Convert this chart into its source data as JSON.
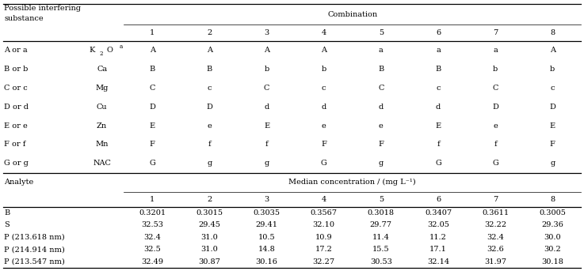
{
  "title_combination": "Combination",
  "title_median": "Median concentration / (mg L⁻¹)",
  "header1": "Possible interfering",
  "header2": "substance",
  "analyte_label": "Analyte",
  "combination_cols": [
    "1",
    "2",
    "3",
    "4",
    "5",
    "6",
    "7",
    "8"
  ],
  "interfering_rows": [
    {
      "label": "A or a",
      "substance": "K2Oa",
      "values": [
        "A",
        "A",
        "A",
        "A",
        "a",
        "a",
        "a",
        "A"
      ]
    },
    {
      "label": "B or b",
      "substance": "Ca",
      "values": [
        "B",
        "B",
        "b",
        "b",
        "B",
        "B",
        "b",
        "b"
      ]
    },
    {
      "label": "C or c",
      "substance": "Mg",
      "values": [
        "C",
        "c",
        "C",
        "c",
        "C",
        "c",
        "C",
        "c"
      ]
    },
    {
      "label": "D or d",
      "substance": "Cu",
      "values": [
        "D",
        "D",
        "d",
        "d",
        "d",
        "d",
        "D",
        "D"
      ]
    },
    {
      "label": "E or e",
      "substance": "Zn",
      "values": [
        "E",
        "e",
        "E",
        "e",
        "e",
        "E",
        "e",
        "E"
      ]
    },
    {
      "label": "F or f",
      "substance": "Mn",
      "values": [
        "F",
        "f",
        "f",
        "F",
        "F",
        "f",
        "f",
        "F"
      ]
    },
    {
      "label": "G or g",
      "substance": "NAC",
      "values": [
        "G",
        "g",
        "g",
        "G",
        "g",
        "G",
        "G",
        "g"
      ]
    }
  ],
  "analyte_rows": [
    {
      "label": "B",
      "values": [
        "0.3201",
        "0.3015",
        "0.3035",
        "0.3567",
        "0.3018",
        "0.3407",
        "0.3611",
        "0.3005"
      ]
    },
    {
      "label": "S",
      "values": [
        "32.53",
        "29.45",
        "29.41",
        "32.10",
        "29.77",
        "32.05",
        "32.22",
        "29.36"
      ]
    },
    {
      "label": "P (213.618 nm)",
      "values": [
        "32.4",
        "31.0",
        "10.5",
        "10.9",
        "11.4",
        "11.2",
        "32.4",
        "30.0"
      ]
    },
    {
      "label": "P (214.914 nm)",
      "values": [
        "32.5",
        "31.0",
        "14.8",
        "17.2",
        "15.5",
        "17.1",
        "32.6",
        "30.2"
      ]
    },
    {
      "label": "P (213.547 nm)",
      "values": [
        "32.49",
        "30.87",
        "30.16",
        "32.27",
        "30.53",
        "32.14",
        "31.97",
        "30.18"
      ]
    }
  ],
  "fs": 7.0,
  "lw_thick": 0.9,
  "lw_thin": 0.5
}
